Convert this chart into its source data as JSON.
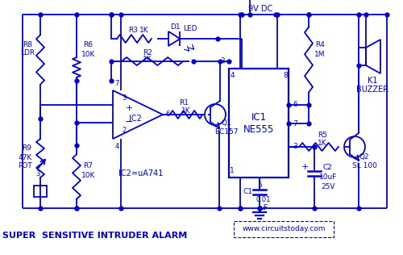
{
  "bg_color": "#ffffff",
  "circuit_color": "#0000cc",
  "title": "SUPER  SENSITIVE INTRUDER ALARM",
  "website": "www.circuitstoday.com",
  "supply_label": "9V DC",
  "ic2_label": "IC2=uA741",
  "ic1_text1": "IC1",
  "ic1_text2": "NE555"
}
